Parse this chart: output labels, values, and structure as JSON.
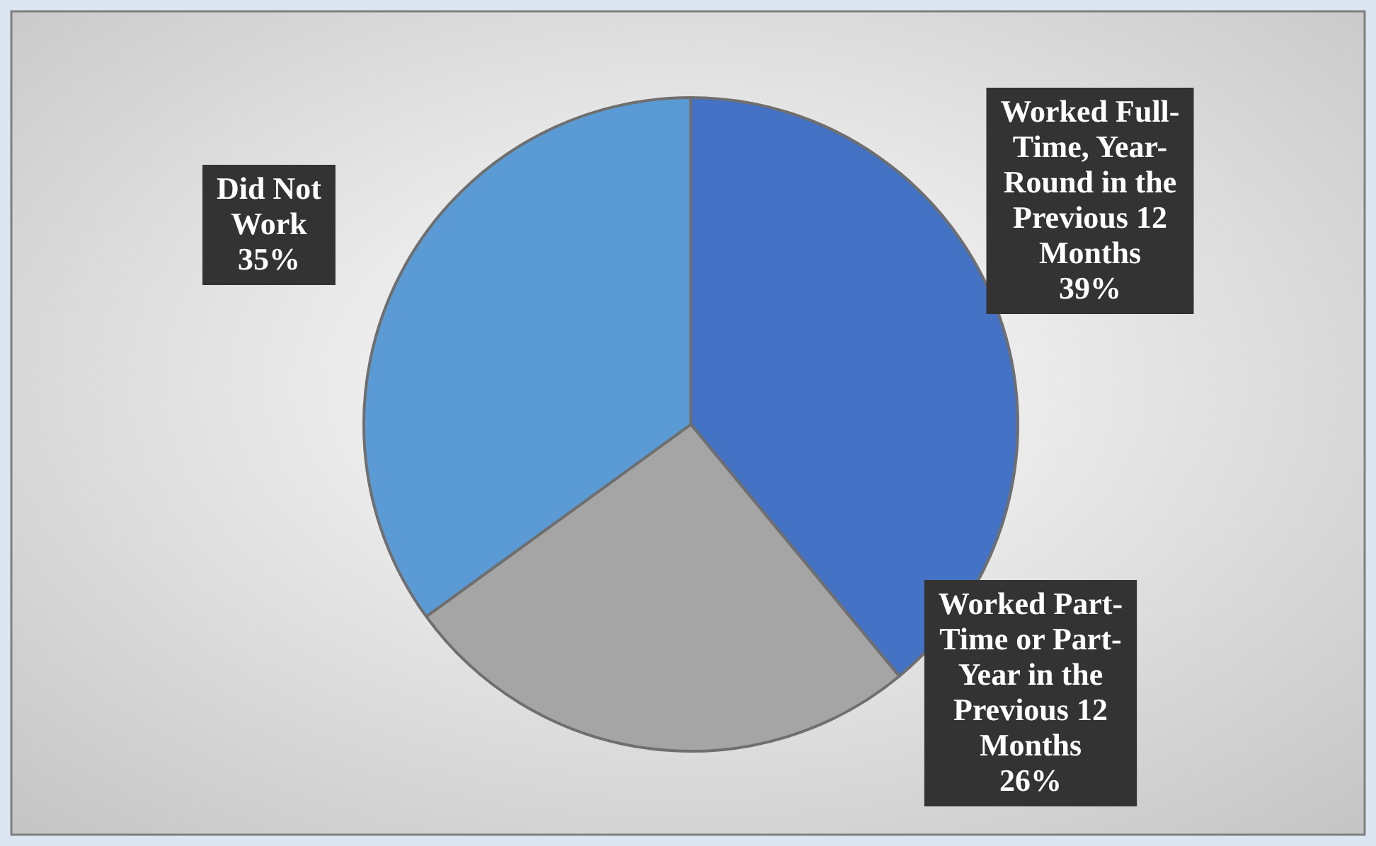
{
  "chart_data": {
    "type": "pie",
    "categories": [
      "Worked Full-Time, Year-Round in the Previous 12 Months",
      "Worked Part-Time or Part-Year in the Previous 12 Months",
      "Did Not Work"
    ],
    "values": [
      39,
      26,
      35
    ],
    "value_labels": [
      "39%",
      "26%",
      "35%"
    ],
    "colors": [
      "#4472c4",
      "#a5a5a5",
      "#5b9bd5"
    ]
  }
}
